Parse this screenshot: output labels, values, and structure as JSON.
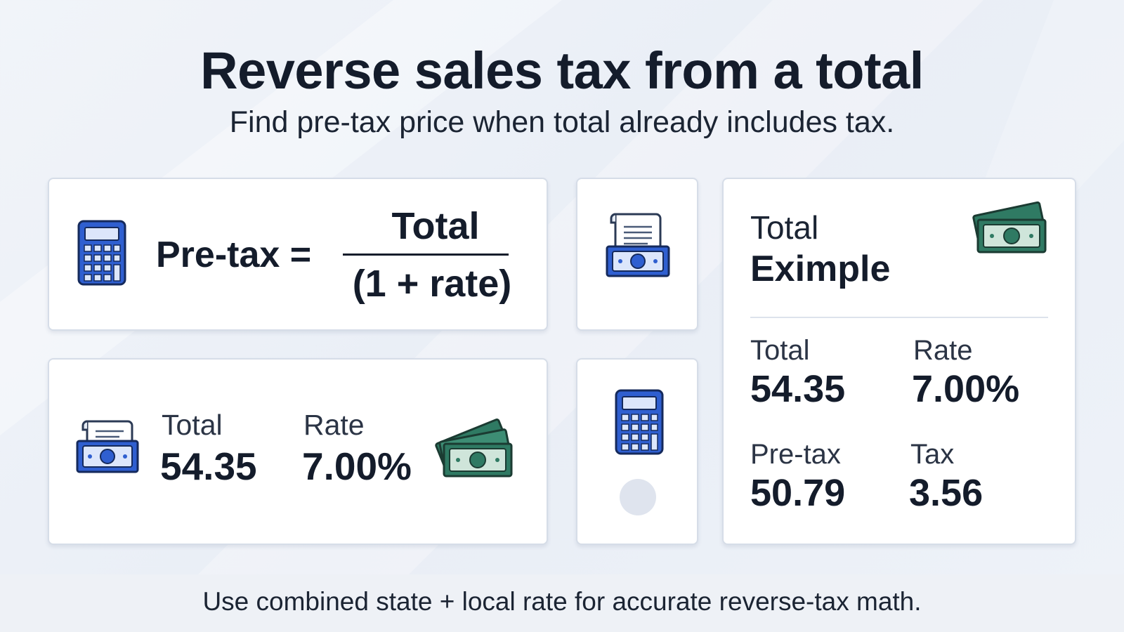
{
  "header": {
    "title": "Reverse sales tax from a total",
    "subtitle": "Find pre-tax price when total already includes tax."
  },
  "formula": {
    "lhs": "Pre-tax =",
    "numerator": "Total",
    "denominator": "(1 + rate)"
  },
  "inputs": {
    "total_label": "Total",
    "total_value": "54.35",
    "rate_label": "Rate",
    "rate_value": "7.00%"
  },
  "example": {
    "heading_line1": "Total",
    "heading_line2": "Eximple",
    "total_label": "Total",
    "total_value": "54.35",
    "rate_label": "Rate",
    "rate_value": "7.00%",
    "pretax_label": "Pre-tax",
    "pretax_value": "50.79",
    "tax_label": "Tax",
    "tax_value": "3.56"
  },
  "footer": {
    "note": "Use combined state + local rate for accurate reverse-tax math."
  },
  "icons": {
    "calculator": "calculator-icon",
    "receipt_cash": "receipt-cash-icon",
    "cash_stack": "cash-stack-icon"
  },
  "colors": {
    "calculator_blue": "#2f5fd0",
    "cash_green": "#2f7a63",
    "text_dark": "#141c2b",
    "card_border": "#d6dde8"
  }
}
